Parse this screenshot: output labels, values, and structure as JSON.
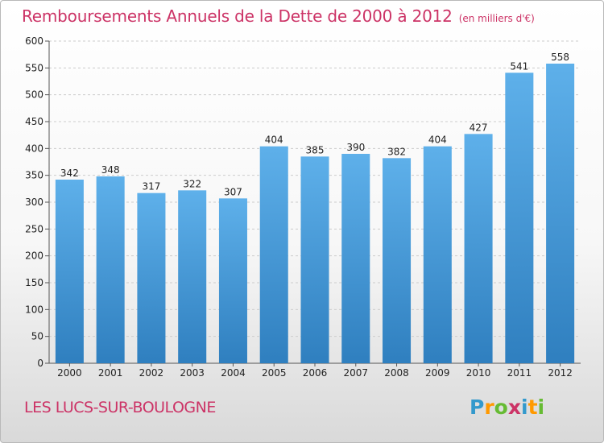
{
  "title": "Remboursements Annuels de la Dette de 2000 à 2012",
  "unit": "(en milliers d'€)",
  "commune": "LES LUCS-SUR-BOULOGNE",
  "logo": {
    "text": "Proxiti",
    "letters": [
      {
        "ch": "P",
        "color": "#3399cc"
      },
      {
        "ch": "r",
        "color": "#ff9900"
      },
      {
        "ch": "o",
        "color": "#66bb33"
      },
      {
        "ch": "x",
        "color": "#cc3366"
      },
      {
        "ch": "i",
        "color": "#3399cc"
      },
      {
        "ch": "t",
        "color": "#ff9900"
      },
      {
        "ch": "i",
        "color": "#66bb33"
      }
    ]
  },
  "colors": {
    "bar_top": "#5eb0ea",
    "bar_bottom": "#2f7fbf",
    "grid": "#cccccc",
    "text": "#222222",
    "accent": "#cc3366"
  },
  "chart_data": {
    "type": "bar",
    "title": "Remboursements Annuels de la Dette de 2000 à 2012",
    "categories": [
      "2000",
      "2001",
      "2002",
      "2003",
      "2004",
      "2005",
      "2006",
      "2007",
      "2008",
      "2009",
      "2010",
      "2011",
      "2012"
    ],
    "values": [
      342,
      348,
      317,
      322,
      307,
      404,
      385,
      390,
      382,
      404,
      427,
      541,
      558
    ],
    "ylim": [
      0,
      600
    ],
    "yticks": [
      0,
      50,
      100,
      150,
      200,
      250,
      300,
      350,
      400,
      450,
      500,
      550,
      600
    ],
    "grid": true,
    "data_labels": true
  }
}
